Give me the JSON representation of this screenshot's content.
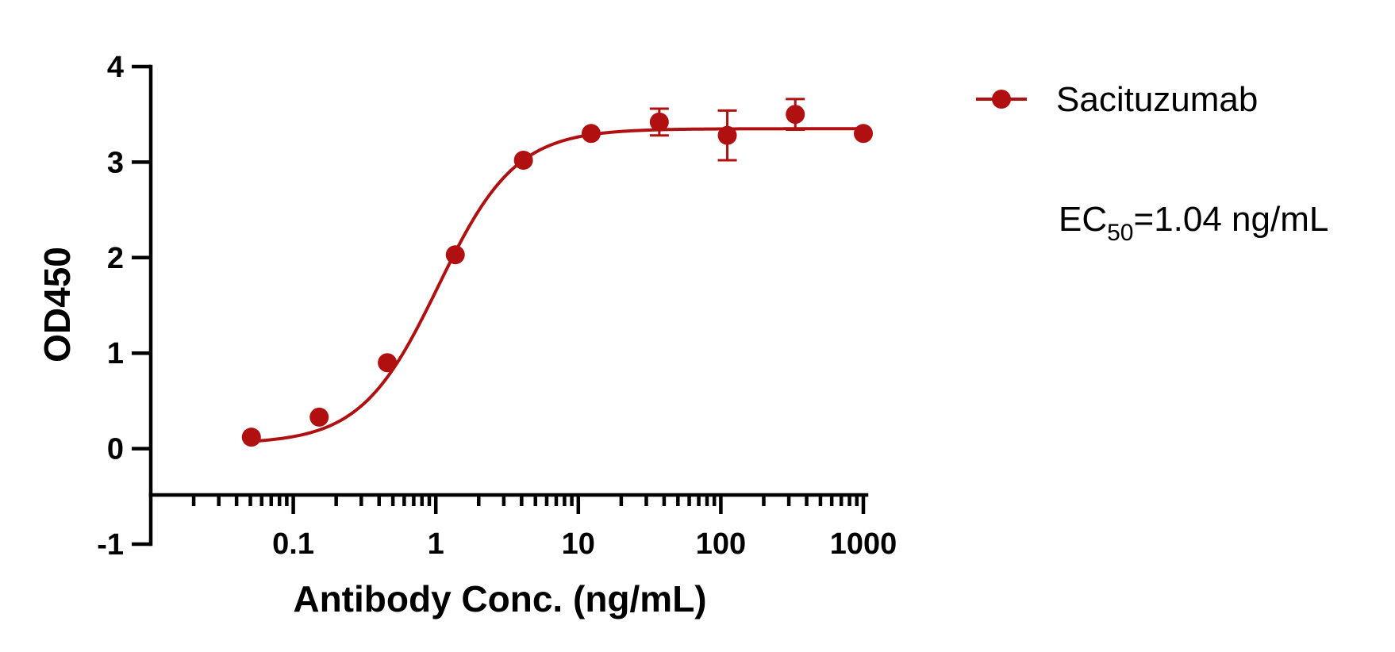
{
  "chart_data": {
    "type": "scatter",
    "title": "",
    "xlabel": "Antibody Conc. (ng/mL)",
    "ylabel": "OD450",
    "x_scale": "log",
    "xlim": [
      0.01,
      1000
    ],
    "ylim": [
      -1,
      4
    ],
    "x_tick_values": [
      0.1,
      1,
      10,
      100,
      1000
    ],
    "x_tick_labels": [
      "0.1",
      "1",
      "10",
      "100",
      "1000"
    ],
    "y_tick_values": [
      -1,
      0,
      1,
      2,
      3,
      4
    ],
    "y_tick_labels": [
      "-1",
      "0",
      "1",
      "2",
      "3",
      "4"
    ],
    "color": "#B01010",
    "legend_position": "top-right",
    "grid": false,
    "series": [
      {
        "name": "Sacituzumab",
        "x": [
          0.0508,
          0.152,
          0.457,
          1.37,
          4.12,
          12.3,
          37.0,
          111,
          333,
          1000
        ],
        "y": [
          0.12,
          0.33,
          0.9,
          2.03,
          3.02,
          3.3,
          3.42,
          3.28,
          3.5,
          3.3
        ],
        "error": [
          0,
          0,
          0,
          0,
          0,
          0,
          0.14,
          0.26,
          0.16,
          0
        ]
      }
    ],
    "fit": {
      "model": "4PL",
      "bottom": 0.05,
      "top": 3.35,
      "ec50": 1.04,
      "hill": 1.6
    },
    "annotation": {
      "prefix": "EC",
      "subscript": "50",
      "suffix": "=1.04 ng/mL"
    }
  }
}
